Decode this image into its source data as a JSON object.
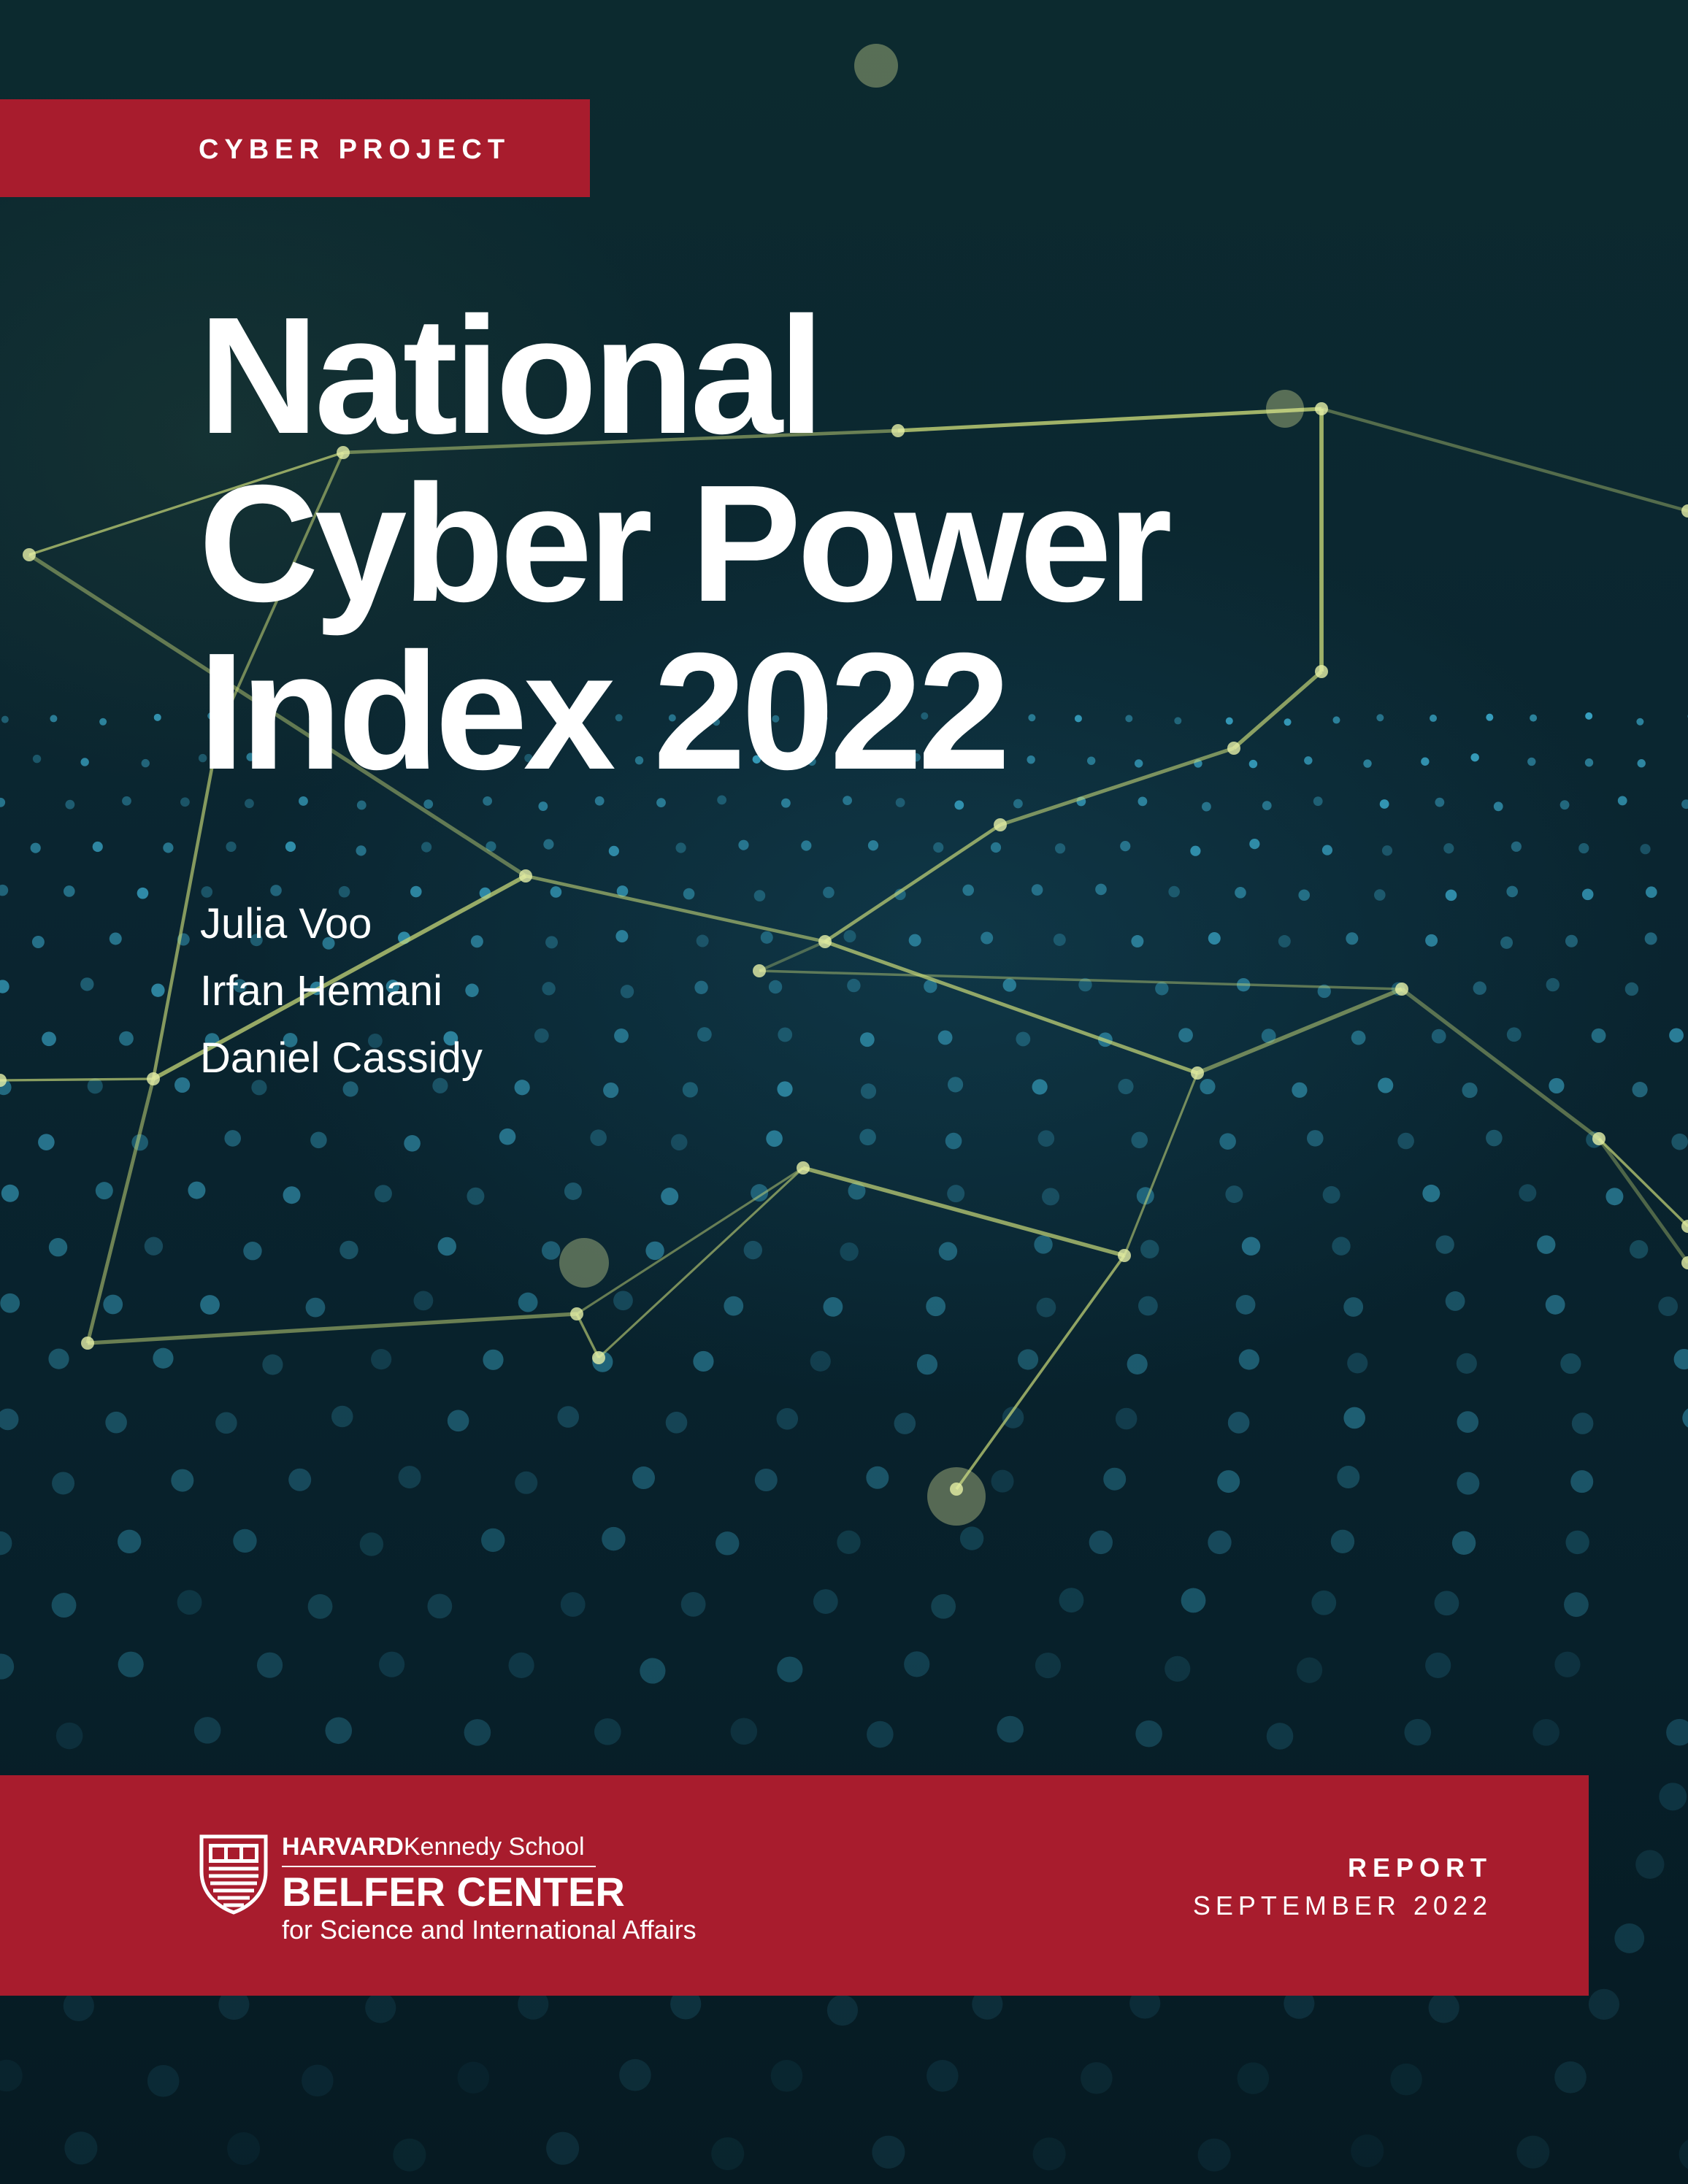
{
  "cover": {
    "program": "CYBER PROJECT",
    "title_lines": [
      "National",
      "Cyber Power",
      "Index 2022"
    ],
    "authors": [
      "Julia Voo",
      "Irfan Hemani",
      "Daniel Cassidy"
    ]
  },
  "footer": {
    "institution": {
      "parent_bold": "HARVARD",
      "parent_rest": "Kennedy School",
      "center": "BELFER CENTER",
      "subtitle": "for Science and International Affairs"
    },
    "doc_type": "REPORT",
    "date": "SEPTEMBER 2022"
  },
  "colors": {
    "brand_red": "#a81c2d",
    "background": "#0a1f26",
    "network_lines": "#c8d878",
    "node_dots": "#3fb5d8"
  }
}
